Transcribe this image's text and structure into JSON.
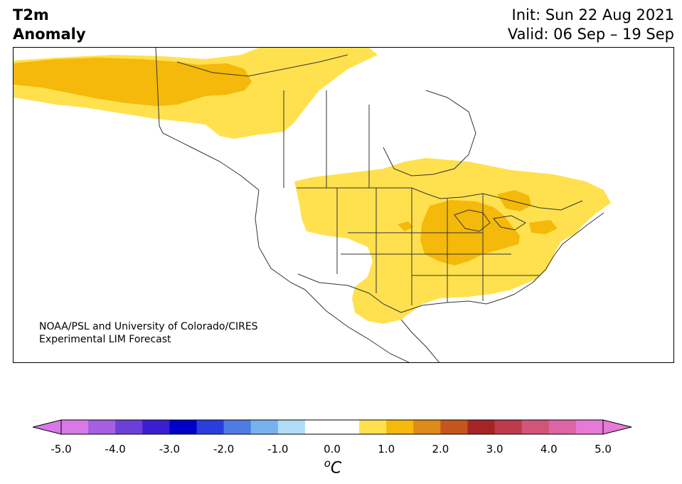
{
  "header": {
    "title_line1": "T2m",
    "title_line2": "Anomaly",
    "init_label": "Init: Sun 22 Aug 2021",
    "valid_label": "Valid: 06 Sep – 19 Sep"
  },
  "credit": {
    "line1": "NOAA/PSL and University of Colorado/CIRES",
    "line2": "Experimental LIM Forecast"
  },
  "colorbar": {
    "unit_symbol": "o",
    "unit_letter": "C",
    "ticks": [
      "-5.0",
      "-4.0",
      "-3.0",
      "-2.0",
      "-1.0",
      "0.0",
      "1.0",
      "2.0",
      "3.0",
      "4.0",
      "5.0"
    ],
    "extend_min_color": "#d879e8",
    "extend_max_color": "#e779d7",
    "colors": [
      "#d879e8",
      "#a55fe0",
      "#6c3fd9",
      "#3a1fd0",
      "#0000c8",
      "#2a3edc",
      "#4f7be3",
      "#78b2ee",
      "#afdcf7",
      "#ffffff",
      "#ffffff",
      "#ffe14f",
      "#f4b90a",
      "#de8a18",
      "#c4561d",
      "#a72424",
      "#bf3a4a",
      "#d15578",
      "#dd65a6",
      "#e779d7"
    ]
  },
  "map": {
    "land_color": "#ffffff",
    "border_color": "#333333",
    "anomaly_colors": {
      "0.5_to_1.0": "#ffe14f",
      "1.0_to_1.5": "#f4b90a"
    }
  }
}
